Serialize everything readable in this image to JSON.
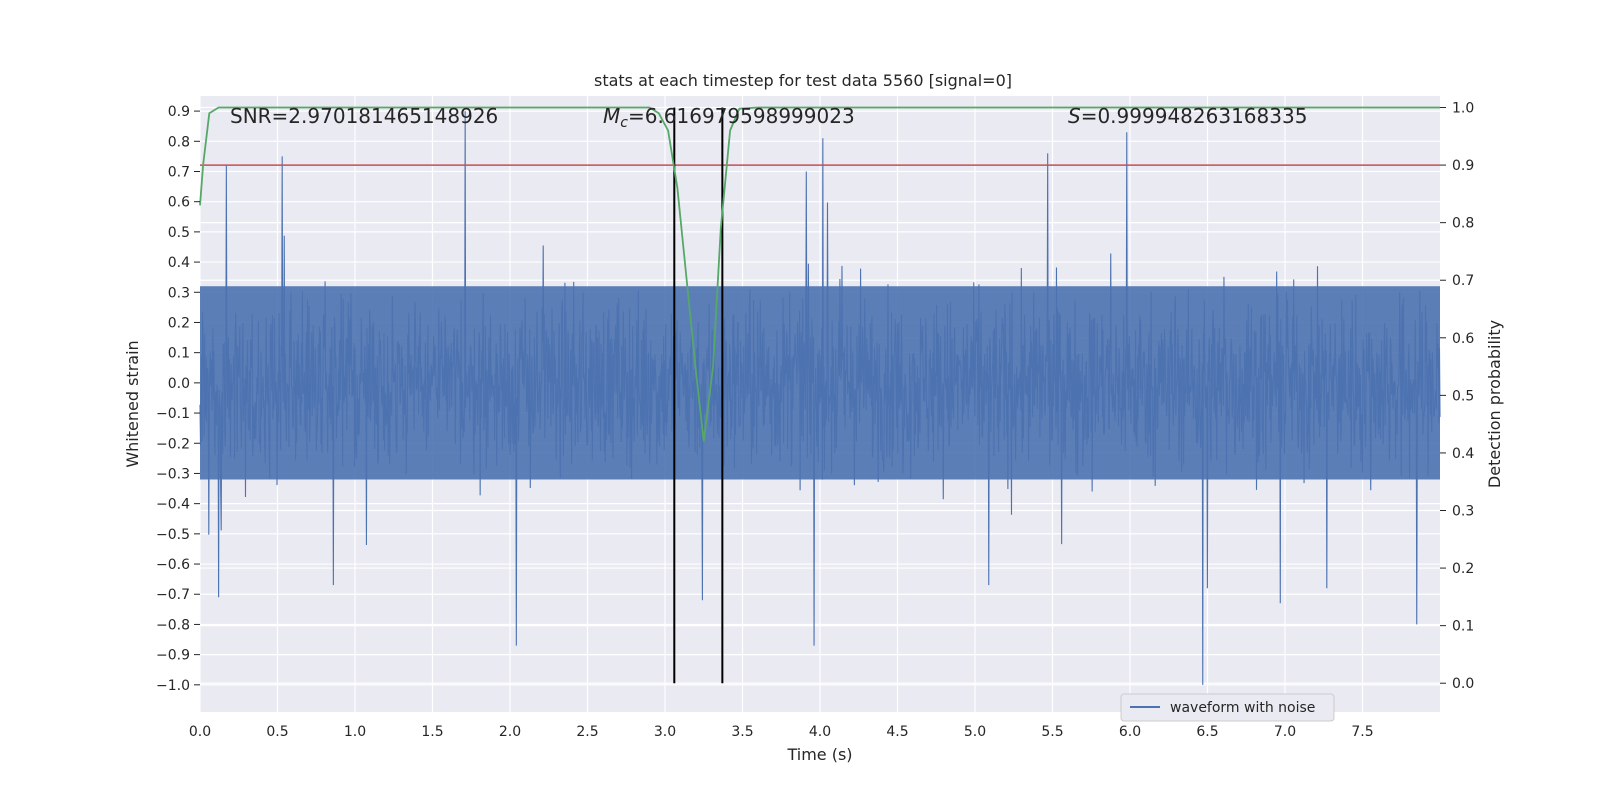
{
  "chart_data": {
    "type": "line",
    "title": "stats at each timestep for test data 5560 [signal=0]",
    "xlabel": "Time (s)",
    "ylabel_left": "Whitened strain",
    "ylabel_right": "Detection probability",
    "xlim": [
      0.0,
      8.0
    ],
    "ylim_left": [
      -1.09,
      0.95
    ],
    "ylim_right": [
      -0.05,
      1.02
    ],
    "x_ticks": [
      "0.0",
      "0.5",
      "1.0",
      "1.5",
      "2.0",
      "2.5",
      "3.0",
      "3.5",
      "4.0",
      "4.5",
      "5.0",
      "5.5",
      "6.0",
      "6.5",
      "7.0",
      "7.5"
    ],
    "y_left_ticks": [
      "0.9",
      "0.8",
      "0.7",
      "0.6",
      "0.5",
      "0.4",
      "0.3",
      "0.2",
      "0.1",
      "0.0",
      "−0.1",
      "−0.2",
      "−0.3",
      "−0.4",
      "−0.5",
      "−0.6",
      "−0.7",
      "−0.8",
      "−0.9",
      "−1.0"
    ],
    "y_right_ticks": [
      "1.0",
      "0.9",
      "0.8",
      "0.7",
      "0.6",
      "0.5",
      "0.4",
      "0.3",
      "0.2",
      "0.1",
      "0.0"
    ],
    "annotations": {
      "snr": "SNR=2.970181465148926",
      "mc_symbol": "M",
      "mc_sub": "c",
      "mc_value": "=6.616979598999023",
      "s_symbol": "S",
      "s_value": "=0.999948263168335"
    },
    "threshold": {
      "value": 0.9,
      "axis": "right",
      "color": "#c44e52"
    },
    "vlines": [
      3.06,
      3.37
    ],
    "waveform": {
      "name": "waveform with noise",
      "color": "#4c72b0",
      "x_range": [
        0.0,
        8.0
      ],
      "num_samples": 2400,
      "core_amplitude": 0.32,
      "spikes": [
        {
          "x": 1.71,
          "y": 0.9
        },
        {
          "x": 4.02,
          "y": 0.81
        },
        {
          "x": 5.98,
          "y": 0.83
        },
        {
          "x": 0.53,
          "y": 0.75
        },
        {
          "x": 0.17,
          "y": 0.72
        },
        {
          "x": 3.91,
          "y": 0.7
        },
        {
          "x": 5.47,
          "y": 0.76
        },
        {
          "x": 6.47,
          "y": -1.0
        },
        {
          "x": 2.04,
          "y": -0.87
        },
        {
          "x": 3.96,
          "y": -0.87
        },
        {
          "x": 7.85,
          "y": -0.8
        },
        {
          "x": 6.5,
          "y": -0.68
        },
        {
          "x": 0.12,
          "y": -0.71
        },
        {
          "x": 3.24,
          "y": -0.72
        },
        {
          "x": 6.97,
          "y": -0.73
        },
        {
          "x": 0.86,
          "y": -0.67
        },
        {
          "x": 5.09,
          "y": -0.67
        },
        {
          "x": 7.27,
          "y": -0.68
        }
      ]
    },
    "probability": {
      "name": "detection probability",
      "color": "#55a868",
      "x": [
        0.0,
        0.02,
        0.06,
        0.12,
        2.75,
        2.9,
        2.96,
        3.02,
        3.08,
        3.14,
        3.2,
        3.25,
        3.31,
        3.36,
        3.42,
        3.48,
        3.6,
        8.0
      ],
      "y": [
        0.83,
        0.9,
        0.99,
        1.0,
        1.0,
        1.0,
        0.99,
        0.96,
        0.86,
        0.7,
        0.54,
        0.42,
        0.55,
        0.79,
        0.96,
        0.998,
        1.0,
        1.0
      ]
    },
    "legend": {
      "location": "lower-right",
      "label": "waveform with noise"
    },
    "grid": true
  }
}
